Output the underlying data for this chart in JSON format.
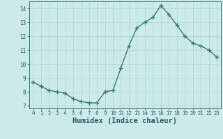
{
  "x": [
    0,
    1,
    2,
    3,
    4,
    5,
    6,
    7,
    8,
    9,
    10,
    11,
    12,
    13,
    14,
    15,
    16,
    17,
    18,
    19,
    20,
    21,
    22,
    23
  ],
  "y": [
    8.7,
    8.4,
    8.1,
    8.0,
    7.9,
    7.5,
    7.3,
    7.2,
    7.2,
    8.0,
    8.1,
    9.7,
    11.3,
    12.6,
    13.0,
    13.35,
    14.2,
    13.55,
    12.8,
    12.0,
    11.5,
    11.3,
    11.0,
    10.5
  ],
  "line_color": "#2e7d6e",
  "marker": "+",
  "marker_size": 4,
  "marker_color": "#2e7d6e",
  "bg_color": "#cdeaea",
  "grid_color": "#b0d8d8",
  "xlabel": "Humidex (Indice chaleur)",
  "xlabel_fontsize": 7.5,
  "xlabel_color": "#1a5f5f",
  "tick_color": "#1a5f5f",
  "ylim": [
    6.8,
    14.5
  ],
  "xlim": [
    -0.5,
    23.5
  ],
  "yticks": [
    7,
    8,
    9,
    10,
    11,
    12,
    13,
    14
  ],
  "xticks": [
    0,
    1,
    2,
    3,
    4,
    5,
    6,
    7,
    8,
    9,
    10,
    11,
    12,
    13,
    14,
    15,
    16,
    17,
    18,
    19,
    20,
    21,
    22,
    23
  ],
  "line_width": 1.0
}
